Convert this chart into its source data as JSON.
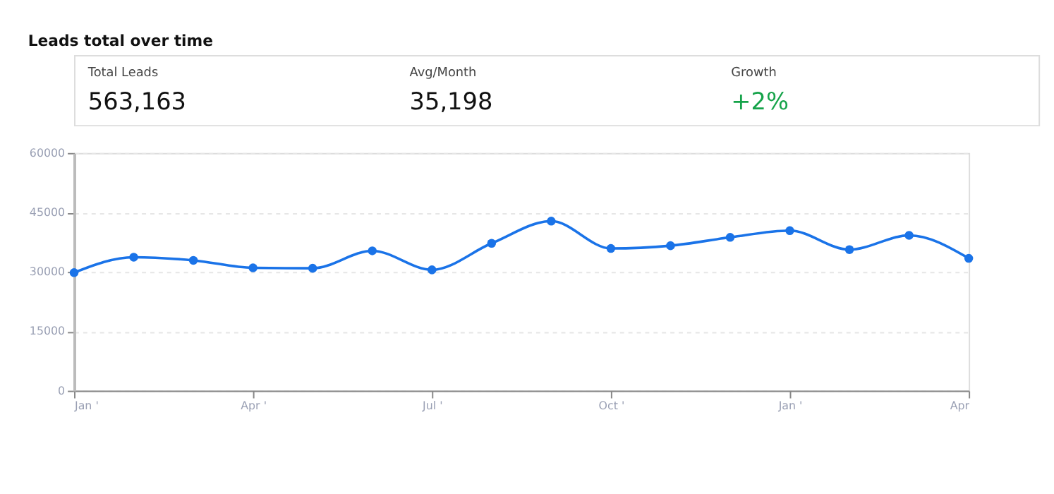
{
  "chart_data": {
    "type": "line",
    "title": "Leads total over time",
    "annotations": [
      "Total Leads",
      "563,163",
      "Avg/Month",
      "35,198",
      "Growth",
      "+2%"
    ],
    "categories": [
      "Jan '",
      null,
      null,
      "Apr '",
      null,
      null,
      "Jul '",
      null,
      null,
      "Oct '",
      null,
      null,
      "Jan '",
      null,
      null,
      "Apr"
    ],
    "series": [
      {
        "color": "#1a73e8",
        "values": [
          29800,
          33700,
          32900,
          31000,
          30900,
          35300,
          30500,
          37200,
          42800,
          35900,
          36600,
          38700,
          40400,
          35600,
          39200,
          33400
        ]
      }
    ],
    "ylim": [
      0,
      60000
    ],
    "yticks": [
      0,
      15000,
      30000,
      45000,
      60000
    ],
    "grid": "y",
    "marker": "circle",
    "line_style": "solid"
  }
}
